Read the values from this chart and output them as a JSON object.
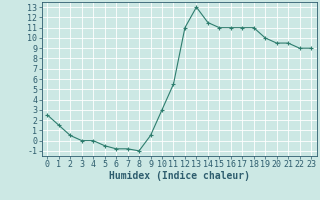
{
  "x": [
    0,
    1,
    2,
    3,
    4,
    5,
    6,
    7,
    8,
    9,
    10,
    11,
    12,
    13,
    14,
    15,
    16,
    17,
    18,
    19,
    20,
    21,
    22,
    23
  ],
  "y": [
    2.5,
    1.5,
    0.5,
    0.0,
    0.0,
    -0.5,
    -0.8,
    -0.8,
    -1.0,
    0.5,
    3.0,
    5.5,
    11.0,
    13.0,
    11.5,
    11.0,
    11.0,
    11.0,
    11.0,
    10.0,
    9.5,
    9.5,
    9.0,
    9.0
  ],
  "line_color": "#2e7d6e",
  "marker": "+",
  "bg_color": "#cce8e4",
  "grid_color": "#ffffff",
  "xlabel": "Humidex (Indice chaleur)",
  "xlim": [
    -0.5,
    23.5
  ],
  "ylim": [
    -1.5,
    13.5
  ],
  "yticks": [
    -1,
    0,
    1,
    2,
    3,
    4,
    5,
    6,
    7,
    8,
    9,
    10,
    11,
    12,
    13
  ],
  "xticks": [
    0,
    1,
    2,
    3,
    4,
    5,
    6,
    7,
    8,
    9,
    10,
    11,
    12,
    13,
    14,
    15,
    16,
    17,
    18,
    19,
    20,
    21,
    22,
    23
  ],
  "font_color": "#2e5d6e",
  "font_size": 6,
  "xlabel_fontsize": 7,
  "line_width": 0.8,
  "marker_size": 3,
  "grid_linewidth": 0.6
}
